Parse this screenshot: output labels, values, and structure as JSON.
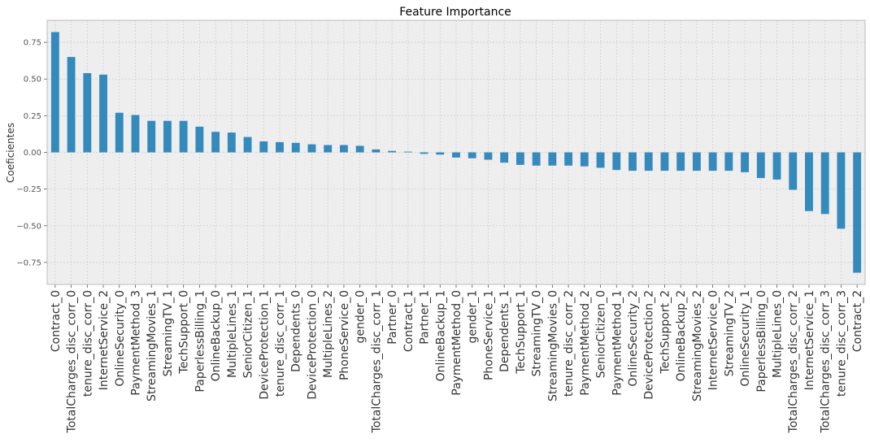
{
  "chart_data": {
    "type": "bar",
    "title": "Feature Importance",
    "xlabel": "",
    "ylabel": "Coeficientes",
    "ylim": [
      -0.9,
      0.9
    ],
    "yticks": [
      -0.75,
      -0.5,
      -0.25,
      0.0,
      0.25,
      0.5,
      0.75
    ],
    "ytick_labels": [
      "−0.75",
      "−0.50",
      "−0.25",
      "0.00",
      "0.25",
      "0.50",
      "0.75"
    ],
    "grid": true,
    "colors": {
      "bar": "#348abd",
      "plot_bg": "#eeeeee",
      "grid": "#cfcfcf",
      "frame": "#bcbcbc"
    },
    "categories": [
      "Contract_0",
      "TotalCharges_disc_corr_0",
      "tenure_disc_corr_0",
      "InternetService_2",
      "OnlineSecurity_0",
      "PaymentMethod_3",
      "StreamingMovies_1",
      "StreamingTV_1",
      "TechSupport_0",
      "PaperlessBilling_1",
      "OnlineBackup_0",
      "MultipleLines_1",
      "SeniorCitizen_1",
      "DeviceProtection_1",
      "tenure_disc_corr_1",
      "Dependents_0",
      "DeviceProtection_0",
      "MultipleLines_2",
      "PhoneService_0",
      "gender_0",
      "TotalCharges_disc_corr_1",
      "Partner_0",
      "Contract_1",
      "Partner_1",
      "OnlineBackup_1",
      "PaymentMethod_0",
      "gender_1",
      "PhoneService_1",
      "Dependents_1",
      "TechSupport_1",
      "StreamingTV_0",
      "StreamingMovies_0",
      "tenure_disc_corr_2",
      "PaymentMethod_2",
      "SeniorCitizen_0",
      "PaymentMethod_1",
      "OnlineSecurity_2",
      "DeviceProtection_2",
      "TechSupport_2",
      "OnlineBackup_2",
      "StreamingMovies_2",
      "InternetService_0",
      "StreamingTV_2",
      "OnlineSecurity_1",
      "PaperlessBilling_0",
      "MultipleLines_0",
      "TotalCharges_disc_corr_2",
      "InternetService_1",
      "TotalCharges_disc_corr_3",
      "tenure_disc_corr_3",
      "Contract_2"
    ],
    "values": [
      0.82,
      0.65,
      0.54,
      0.53,
      0.27,
      0.255,
      0.215,
      0.215,
      0.215,
      0.175,
      0.14,
      0.135,
      0.105,
      0.075,
      0.07,
      0.065,
      0.055,
      0.05,
      0.05,
      0.045,
      0.02,
      0.01,
      0.005,
      -0.01,
      -0.015,
      -0.035,
      -0.04,
      -0.05,
      -0.07,
      -0.085,
      -0.09,
      -0.09,
      -0.09,
      -0.095,
      -0.105,
      -0.12,
      -0.125,
      -0.125,
      -0.125,
      -0.125,
      -0.125,
      -0.125,
      -0.125,
      -0.135,
      -0.175,
      -0.185,
      -0.255,
      -0.4,
      -0.42,
      -0.52,
      -0.82
    ]
  }
}
